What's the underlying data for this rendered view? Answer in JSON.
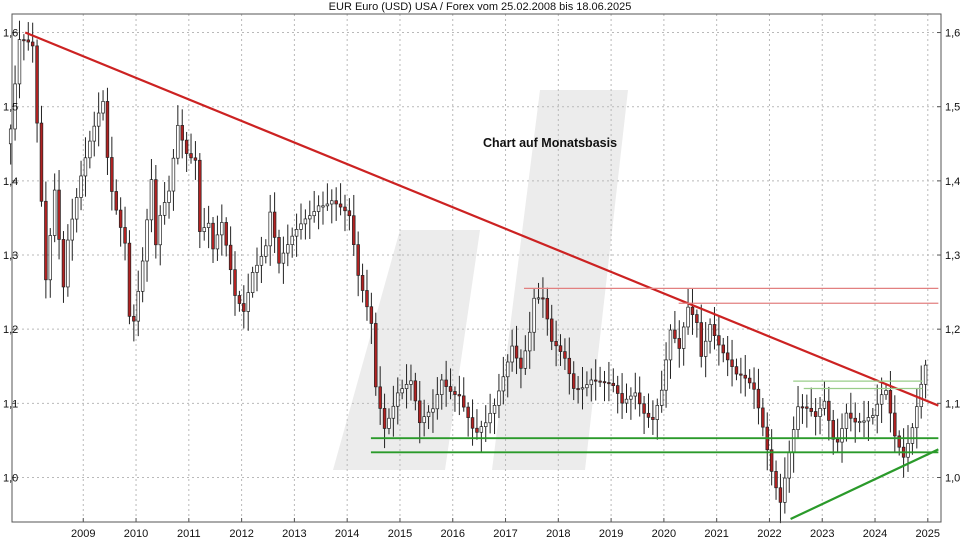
{
  "chart_data": {
    "type": "candlestick",
    "title": "EUR Euro (USD) USA / Forex vom 25.02.2008 bis 18.06.2025",
    "annotation": "Chart auf Monatsbasis",
    "xlim": [
      2008.15,
      2025.75
    ],
    "ylim": [
      0.94,
      1.625
    ],
    "y_ticks": [
      {
        "value": 1.0,
        "label": "1,0"
      },
      {
        "value": 1.1,
        "label": "1,1"
      },
      {
        "value": 1.2,
        "label": "1,2"
      },
      {
        "value": 1.3,
        "label": "1,3"
      },
      {
        "value": 1.4,
        "label": "1,4"
      },
      {
        "value": 1.5,
        "label": "1,5"
      },
      {
        "value": 1.6,
        "label": "1,6"
      }
    ],
    "x_ticks": [
      {
        "value": 2009.5,
        "label": "2009"
      },
      {
        "value": 2010.5,
        "label": "2010"
      },
      {
        "value": 2011.5,
        "label": "2011"
      },
      {
        "value": 2012.5,
        "label": "2012"
      },
      {
        "value": 2013.5,
        "label": "2013"
      },
      {
        "value": 2014.5,
        "label": "2014"
      },
      {
        "value": 2015.5,
        "label": "2015"
      },
      {
        "value": 2016.5,
        "label": "2016"
      },
      {
        "value": 2017.5,
        "label": "2017"
      },
      {
        "value": 2018.5,
        "label": "2018"
      },
      {
        "value": 2019.5,
        "label": "2019"
      },
      {
        "value": 2020.5,
        "label": "2020"
      },
      {
        "value": 2021.5,
        "label": "2021"
      },
      {
        "value": 2022.5,
        "label": "2022"
      },
      {
        "value": 2023.5,
        "label": "2023"
      },
      {
        "value": 2024.5,
        "label": "2024"
      },
      {
        "value": 2025.5,
        "label": "2025"
      }
    ],
    "grid": true,
    "lines": [
      {
        "type": "trendline",
        "color": "#cc2222",
        "x": [
          2008.4,
          2025.7
        ],
        "y": [
          1.6,
          1.097
        ]
      },
      {
        "type": "resistance",
        "color": "#e28080",
        "x": [
          2017.85,
          2025.7
        ],
        "y": [
          1.255,
          1.255
        ]
      },
      {
        "type": "resistance",
        "color": "#e28080",
        "x": [
          2020.78,
          2025.7
        ],
        "y": [
          1.235,
          1.235
        ]
      },
      {
        "type": "resistance",
        "color": "#9acd8a",
        "x": [
          2022.95,
          2025.4
        ],
        "y": [
          1.13,
          1.13
        ]
      },
      {
        "type": "resistance",
        "color": "#9acd8a",
        "x": [
          2023.15,
          2025.4
        ],
        "y": [
          1.12,
          1.12
        ]
      },
      {
        "type": "support",
        "color": "#2a9a2a",
        "x": [
          2014.95,
          2025.7
        ],
        "y": [
          1.053,
          1.053
        ]
      },
      {
        "type": "support",
        "color": "#2a9a2a",
        "x": [
          2014.95,
          2025.7
        ],
        "y": [
          1.034,
          1.034
        ]
      },
      {
        "type": "support_trend",
        "color": "#2a9a2a",
        "x": [
          2022.9,
          2025.7
        ],
        "y": [
          0.944,
          1.038
        ]
      }
    ],
    "candle_colors": {
      "up": "#ffffff",
      "down": "#b22222",
      "wick": "#222222"
    },
    "anchors": [
      [
        "2008-02",
        1.47
      ],
      [
        "2008-04",
        1.58
      ],
      [
        "2008-07",
        1.57
      ],
      [
        "2008-08",
        1.47
      ],
      [
        "2008-10",
        1.27
      ],
      [
        "2008-12",
        1.4
      ],
      [
        "2009-02",
        1.27
      ],
      [
        "2009-03",
        1.33
      ],
      [
        "2009-06",
        1.4
      ],
      [
        "2009-09",
        1.46
      ],
      [
        "2009-11",
        1.5
      ],
      [
        "2009-12",
        1.43
      ],
      [
        "2010-01",
        1.39
      ],
      [
        "2010-04",
        1.33
      ],
      [
        "2010-05",
        1.23
      ],
      [
        "2010-06",
        1.22
      ],
      [
        "2010-08",
        1.29
      ],
      [
        "2010-10",
        1.39
      ],
      [
        "2010-11",
        1.3
      ],
      [
        "2010-12",
        1.34
      ],
      [
        "2011-02",
        1.38
      ],
      [
        "2011-04",
        1.48
      ],
      [
        "2011-06",
        1.45
      ],
      [
        "2011-08",
        1.44
      ],
      [
        "2011-09",
        1.34
      ],
      [
        "2011-11",
        1.34
      ],
      [
        "2011-12",
        1.3
      ],
      [
        "2012-02",
        1.33
      ],
      [
        "2012-05",
        1.24
      ],
      [
        "2012-07",
        1.23
      ],
      [
        "2012-09",
        1.29
      ],
      [
        "2012-12",
        1.32
      ],
      [
        "2013-01",
        1.36
      ],
      [
        "2013-03",
        1.28
      ],
      [
        "2013-05",
        1.3
      ],
      [
        "2013-09",
        1.35
      ],
      [
        "2013-12",
        1.38
      ],
      [
        "2014-03",
        1.38
      ],
      [
        "2014-05",
        1.36
      ],
      [
        "2014-07",
        1.34
      ],
      [
        "2014-09",
        1.26
      ],
      [
        "2014-12",
        1.21
      ],
      [
        "2015-01",
        1.13
      ],
      [
        "2015-03",
        1.08
      ],
      [
        "2015-06",
        1.12
      ],
      [
        "2015-09",
        1.12
      ],
      [
        "2015-11",
        1.06
      ],
      [
        "2016-02",
        1.09
      ],
      [
        "2016-04",
        1.14
      ],
      [
        "2016-08",
        1.12
      ],
      [
        "2016-11",
        1.06
      ],
      [
        "2016-12",
        1.05
      ],
      [
        "2017-02",
        1.06
      ],
      [
        "2017-04",
        1.09
      ],
      [
        "2017-06",
        1.14
      ],
      [
        "2017-08",
        1.19
      ],
      [
        "2017-10",
        1.16
      ],
      [
        "2017-12",
        1.2
      ],
      [
        "2018-01",
        1.24
      ],
      [
        "2018-03",
        1.23
      ],
      [
        "2018-05",
        1.17
      ],
      [
        "2018-08",
        1.16
      ],
      [
        "2018-10",
        1.13
      ],
      [
        "2019-02",
        1.14
      ],
      [
        "2019-05",
        1.12
      ],
      [
        "2019-07",
        1.11
      ],
      [
        "2019-09",
        1.09
      ],
      [
        "2019-12",
        1.12
      ],
      [
        "2020-02",
        1.1
      ],
      [
        "2020-04",
        1.09
      ],
      [
        "2020-06",
        1.12
      ],
      [
        "2020-08",
        1.19
      ],
      [
        "2020-10",
        1.16
      ],
      [
        "2020-12",
        1.22
      ],
      [
        "2021-02",
        1.21
      ],
      [
        "2021-03",
        1.17
      ],
      [
        "2021-05",
        1.22
      ],
      [
        "2021-07",
        1.19
      ],
      [
        "2021-09",
        1.16
      ],
      [
        "2021-11",
        1.13
      ],
      [
        "2022-01",
        1.12
      ],
      [
        "2022-03",
        1.11
      ],
      [
        "2022-05",
        1.07
      ],
      [
        "2022-07",
        1.02
      ],
      [
        "2022-09",
        0.98
      ],
      [
        "2022-11",
        1.04
      ],
      [
        "2023-01",
        1.09
      ],
      [
        "2023-03",
        1.08
      ],
      [
        "2023-05",
        1.07
      ],
      [
        "2023-07",
        1.1
      ],
      [
        "2023-09",
        1.06
      ],
      [
        "2023-10",
        1.06
      ],
      [
        "2023-12",
        1.1
      ],
      [
        "2024-02",
        1.08
      ],
      [
        "2024-04",
        1.07
      ],
      [
        "2024-06",
        1.07
      ],
      [
        "2024-08",
        1.1
      ],
      [
        "2024-09",
        1.11
      ],
      [
        "2024-11",
        1.06
      ],
      [
        "2025-01",
        1.04
      ],
      [
        "2025-03",
        1.08
      ],
      [
        "2025-05",
        1.13
      ],
      [
        "2025-06",
        1.15
      ]
    ]
  },
  "watermark": {
    "color": "#ececec"
  }
}
